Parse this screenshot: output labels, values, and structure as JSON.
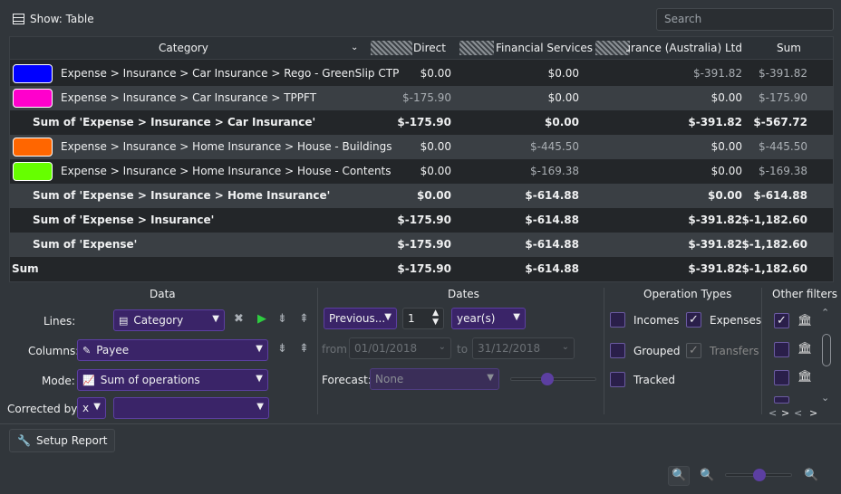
{
  "topbar": {
    "show_label": "Show: Table",
    "search_placeholder": "Search"
  },
  "table": {
    "headers": [
      "Category",
      "Direct",
      "Financial Services",
      "Insurance (Australia) Ltd",
      "Sum"
    ],
    "rows": [
      {
        "label": "Expense > Insurance > Car Insurance > Rego - GreenSlip CTP",
        "swatch": "#0000ff",
        "bold": false,
        "v": [
          "$0.00",
          "$0.00",
          "$-391.82",
          "$-391.82"
        ]
      },
      {
        "label": "Expense > Insurance > Car Insurance > TPPFT",
        "swatch": "#ff00cc",
        "bold": false,
        "v": [
          "$-175.90",
          "$0.00",
          "$0.00",
          "$-175.90"
        ]
      },
      {
        "label": "Sum of 'Expense > Insurance > Car Insurance'",
        "swatch": "",
        "bold": true,
        "v": [
          "$-175.90",
          "$0.00",
          "$-391.82",
          "$-567.72"
        ]
      },
      {
        "label": "Expense > Insurance > Home Insurance > House - Buildings",
        "swatch": "#ff6600",
        "bold": false,
        "v": [
          "$0.00",
          "$-445.50",
          "$0.00",
          "$-445.50"
        ]
      },
      {
        "label": "Expense > Insurance > Home Insurance > House - Contents",
        "swatch": "#66ff00",
        "bold": false,
        "v": [
          "$0.00",
          "$-169.38",
          "$0.00",
          "$-169.38"
        ]
      },
      {
        "label": "Sum of 'Expense > Insurance > Home Insurance'",
        "swatch": "",
        "bold": true,
        "v": [
          "$0.00",
          "$-614.88",
          "$0.00",
          "$-614.88"
        ]
      },
      {
        "label": "Sum of 'Expense > Insurance'",
        "swatch": "",
        "bold": true,
        "v": [
          "$-175.90",
          "$-614.88",
          "$-391.82",
          "$-1,182.60"
        ]
      },
      {
        "label": "Sum of 'Expense'",
        "swatch": "",
        "bold": true,
        "v": [
          "$-175.90",
          "$-614.88",
          "$-391.82",
          "$-1,182.60"
        ]
      },
      {
        "label": "Sum",
        "swatch": "",
        "bold": true,
        "v": [
          "$-175.90",
          "$-614.88",
          "$-391.82",
          "$-1,182.60"
        ]
      }
    ]
  },
  "data_group": {
    "title": "Data",
    "lines_label": "Lines:",
    "lines_value": "Category",
    "columns_label": "Columns:",
    "columns_value": "Payee",
    "mode_label": "Mode:",
    "mode_value": "Sum of operations",
    "corrected_label": "Corrected by:",
    "corrected_value": "x",
    "corrected_second": ""
  },
  "dates_group": {
    "title": "Dates",
    "period": "Previous...",
    "count": "1",
    "unit": "year(s)",
    "from_label": "from",
    "from_value": "01/01/2018",
    "to_label": "to",
    "to_value": "31/12/2018",
    "forecast_label": "Forecast:",
    "forecast_value": "None"
  },
  "optypes": {
    "title": "Operation Types",
    "incomes": "Incomes",
    "expenses": "Expenses",
    "grouped": "Grouped",
    "transfers": "Transfers",
    "tracked": "Tracked",
    "incomes_checked": false,
    "expenses_checked": true
  },
  "other": {
    "title": "Other filters"
  },
  "setup": {
    "label": "Setup Report"
  },
  "icons": {
    "table": "table-icon",
    "setup": "wrench-icon",
    "zoom": "zoom-icon"
  }
}
